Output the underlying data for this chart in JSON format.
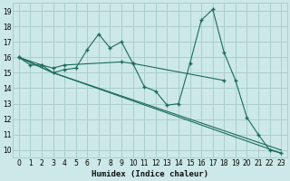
{
  "background_color": "#cce8e8",
  "grid_color": "#aacece",
  "line_color": "#1a6b5a",
  "marker_color": "#1a6b5a",
  "xlabel": "Humidex (Indice chaleur)",
  "xlim": [
    -0.5,
    23.5
  ],
  "ylim": [
    9.5,
    19.5
  ],
  "xticks": [
    0,
    1,
    2,
    3,
    4,
    5,
    6,
    7,
    8,
    9,
    10,
    11,
    12,
    13,
    14,
    15,
    16,
    17,
    18,
    19,
    20,
    21,
    22,
    23
  ],
  "yticks": [
    10,
    11,
    12,
    13,
    14,
    15,
    16,
    17,
    18,
    19
  ],
  "series": [
    {
      "x": [
        0,
        1,
        2,
        3,
        4,
        5,
        6,
        7,
        8,
        9,
        10,
        11,
        12,
        13,
        14,
        15,
        16,
        17,
        18,
        19,
        20,
        21,
        22,
        23
      ],
      "y": [
        16.0,
        15.5,
        15.5,
        15.0,
        15.2,
        15.3,
        16.5,
        17.5,
        16.6,
        17.0,
        15.6,
        14.1,
        13.8,
        12.9,
        13.0,
        15.6,
        18.4,
        19.1,
        16.3,
        14.5,
        12.1,
        11.0,
        10.0,
        9.8
      ],
      "has_markers": true
    },
    {
      "x": [
        0,
        2,
        3,
        4,
        9,
        10,
        18
      ],
      "y": [
        16.0,
        15.5,
        15.3,
        15.5,
        15.7,
        15.6,
        14.5
      ],
      "has_markers": true
    },
    {
      "x": [
        0,
        3,
        23
      ],
      "y": [
        16.0,
        15.0,
        10.0
      ],
      "has_markers": false
    },
    {
      "x": [
        0,
        3,
        23
      ],
      "y": [
        16.0,
        15.0,
        9.8
      ],
      "has_markers": false
    }
  ]
}
